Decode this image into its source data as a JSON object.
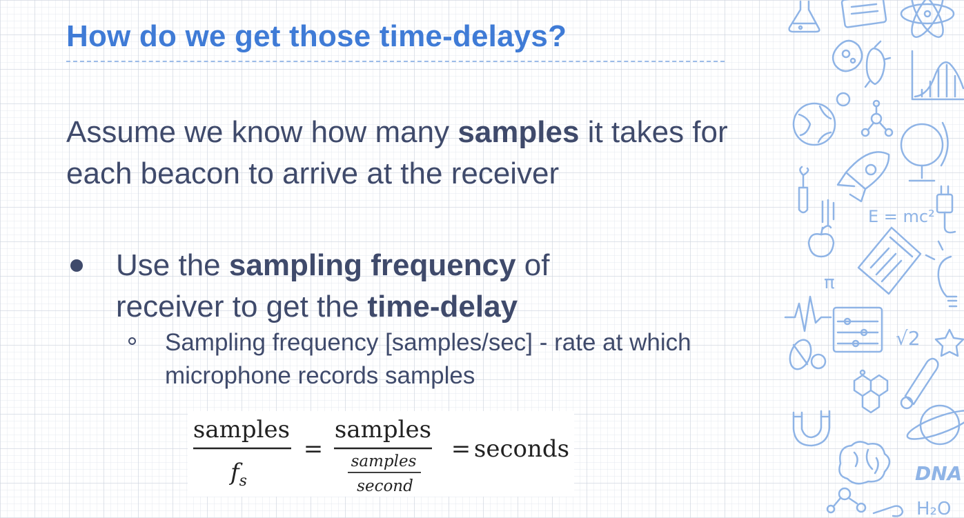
{
  "slide": {
    "title": "How do we get those time-delays?",
    "paragraph": {
      "p1": "Assume we know how many ",
      "b1": "samples",
      "p2": " it takes for each beacon to arrive at the receiver"
    },
    "bullet_1": {
      "p1": "Use the ",
      "b1": "sampling frequency",
      "p2": " of receiver to get the ",
      "b2": "time-delay"
    },
    "bullet_2": {
      "text": "Sampling frequency [samples/sec] -  rate at which microphone records samples"
    },
    "equation": {
      "num1": "samples",
      "den1_base": "f",
      "den1_sub": "s",
      "equals": "=",
      "num2": "samples",
      "den2_num": "samples",
      "den2_den": "second",
      "result": "seconds"
    },
    "decoration": {
      "formula_text": "E = mc²",
      "pi_text": "π",
      "sqrt_text": "√2",
      "water_text": "H₂O",
      "dna_text": "DNA"
    },
    "colors": {
      "title": "#3f7bd6",
      "body": "#3f4a6b",
      "doodle": "#8fb4e6"
    }
  }
}
